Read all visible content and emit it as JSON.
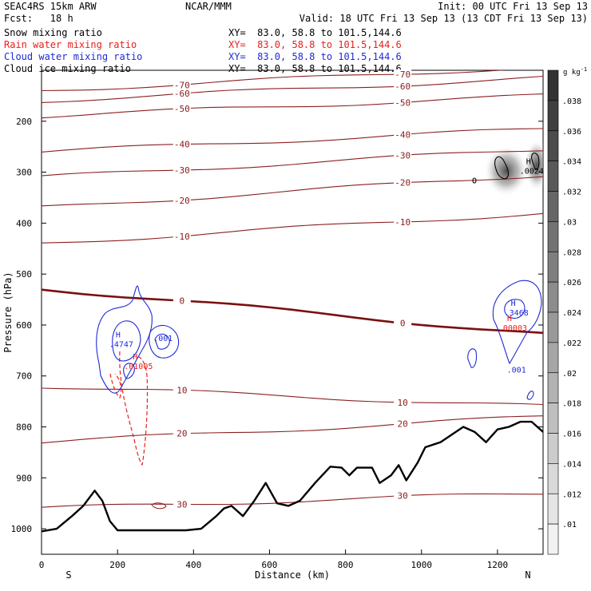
{
  "header": {
    "model": "SEAC4RS 15km ARW",
    "center": "NCAR/MMM",
    "init": "Init: 00 UTC Fri 13 Sep 13",
    "fcst": "Fcst:   18 h",
    "valid": "Valid: 18 UTC Fri 13 Sep 13 (13 CDT Fri 13 Sep 13)"
  },
  "fields": [
    {
      "name": "Snow mixing ratio",
      "xy": "XY=  83.0, 58.8 to 101.5,144.6",
      "color": "#000000"
    },
    {
      "name": "Rain water mixing ratio",
      "xy": "XY=  83.0, 58.8 to 101.5,144.6",
      "color": "#e8201e"
    },
    {
      "name": "Cloud water mixing ratio",
      "xy": "XY=  83.0, 58.8 to 101.5,144.6",
      "color": "#1f2bd6"
    },
    {
      "name": "Cloud ice mixing ratio",
      "xy": "XY=  83.0, 58.8 to 101.5,144.6",
      "color": "#000000"
    }
  ],
  "colorbar": {
    "unit": "g kg",
    "unit_exp": "-1",
    "labels": [
      ".038",
      ".036",
      ".034",
      ".032",
      ".03",
      ".028",
      ".026",
      ".024",
      ".022",
      ".02",
      ".018",
      ".016",
      ".014",
      ".012",
      ".01"
    ]
  },
  "chart_data": {
    "type": "contour",
    "xlabel": "Distance (km)",
    "ylabel": "Pressure (hPa)",
    "xlim": [
      0,
      1320
    ],
    "ylim": [
      1050,
      100
    ],
    "x_ticks": [
      0,
      200,
      400,
      600,
      800,
      1000,
      1200
    ],
    "y_ticks": [
      200,
      300,
      400,
      500,
      600,
      700,
      800,
      900,
      1000
    ],
    "x_end_labels": {
      "left": "S",
      "right": "N"
    },
    "terrain": [
      [
        0,
        1005
      ],
      [
        40,
        1000
      ],
      [
        80,
        975
      ],
      [
        110,
        955
      ],
      [
        140,
        925
      ],
      [
        160,
        945
      ],
      [
        180,
        985
      ],
      [
        200,
        1003
      ],
      [
        240,
        1003
      ],
      [
        300,
        1003
      ],
      [
        380,
        1003
      ],
      [
        420,
        1000
      ],
      [
        460,
        975
      ],
      [
        480,
        960
      ],
      [
        500,
        955
      ],
      [
        530,
        975
      ],
      [
        560,
        945
      ],
      [
        590,
        910
      ],
      [
        620,
        950
      ],
      [
        650,
        955
      ],
      [
        680,
        945
      ],
      [
        720,
        910
      ],
      [
        760,
        878
      ],
      [
        790,
        880
      ],
      [
        810,
        895
      ],
      [
        830,
        880
      ],
      [
        850,
        880
      ],
      [
        870,
        880
      ],
      [
        890,
        910
      ],
      [
        920,
        895
      ],
      [
        940,
        875
      ],
      [
        960,
        905
      ],
      [
        990,
        870
      ],
      [
        1010,
        840
      ],
      [
        1050,
        830
      ],
      [
        1080,
        815
      ],
      [
        1110,
        800
      ],
      [
        1140,
        810
      ],
      [
        1170,
        830
      ],
      [
        1200,
        805
      ],
      [
        1230,
        800
      ],
      [
        1260,
        790
      ],
      [
        1290,
        790
      ],
      [
        1320,
        810
      ]
    ],
    "temperature_isotherms": [
      {
        "level": "-70",
        "p_left": 140,
        "p_right": 93
      },
      {
        "level": "-60",
        "p_left": 160,
        "p_right": 115
      },
      {
        "level": "-50",
        "p_left": 190,
        "p_right": 150
      },
      {
        "level": "-40",
        "p_left": 260,
        "p_right": 215
      },
      {
        "level": "-30",
        "p_left": 310,
        "p_right": 255
      },
      {
        "level": "-20",
        "p_left": 370,
        "p_right": 305
      },
      {
        "level": "-10",
        "p_left": 440,
        "p_right": 380
      },
      {
        "level": "0",
        "p_left": 528,
        "p_right": 618
      },
      {
        "level": "10",
        "p_left": 720,
        "p_right": 760
      },
      {
        "level": "20",
        "p_left": 830,
        "p_right": 780
      },
      {
        "level": "30",
        "p_left": 960,
        "p_right": 930
      }
    ],
    "extrema_labels": [
      {
        "series": "Cloud water mixing ratio",
        "label": "H",
        "value": ".4747",
        "x": 210,
        "p": 640
      },
      {
        "series": "Cloud water mixing ratio",
        "label": "",
        "value": ".001",
        "x": 320,
        "p": 628
      },
      {
        "series": "Rain water mixing ratio",
        "label": "H",
        "value": ".01005",
        "x": 255,
        "p": 683
      },
      {
        "series": "Cloud water mixing ratio",
        "label": "H",
        "value": ".3468",
        "x": 1250,
        "p": 578
      },
      {
        "series": "Rain water mixing ratio",
        "label": "H",
        "value": ".00003",
        "x": 1240,
        "p": 608
      },
      {
        "series": "Cloud water mixing ratio",
        "label": "",
        "value": ".001",
        "x": 1250,
        "p": 690
      },
      {
        "series": "Cloud ice mixing ratio",
        "label": "H",
        "value": ".0024",
        "x": 1290,
        "p": 300
      }
    ]
  }
}
